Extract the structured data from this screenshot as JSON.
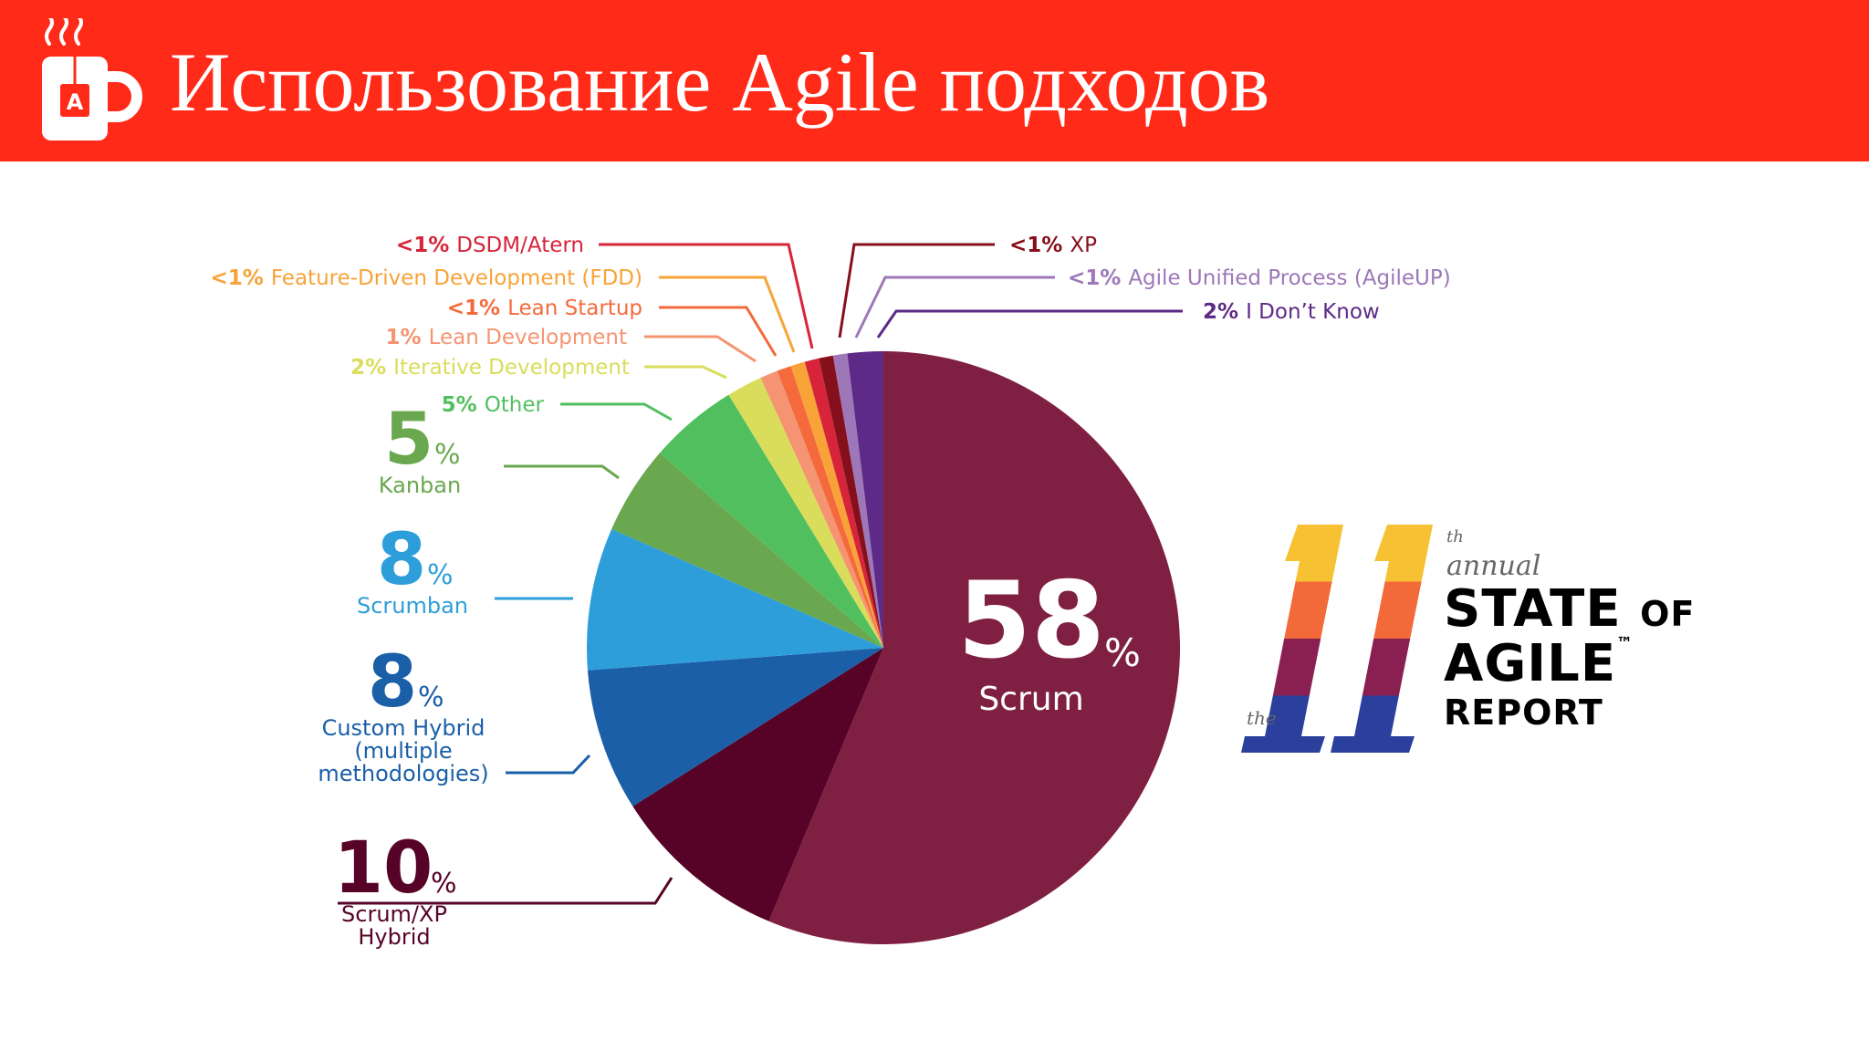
{
  "header": {
    "title": "Использование Agile подходов",
    "logo_icon": "coffee-mug-icon",
    "logo_letter": "A"
  },
  "colors": {
    "banner": "#ff2a18",
    "scrum": "#7f2043",
    "scrum_xp": "#560327",
    "custom_hybrid": "#1a5fa8",
    "scrumban": "#2d9ed9",
    "kanban": "#6aa84f",
    "other": "#52bf5f",
    "iterative": "#d9dd5b",
    "lean_dev": "#f59472",
    "lean_startup": "#f46a3c",
    "fdd": "#f7a338",
    "dsdm": "#d7243a",
    "xp": "#860f1c",
    "agileup": "#9d77b8",
    "dont_know": "#5d2a87"
  },
  "chart_data": {
    "type": "pie",
    "title": "",
    "slices": [
      {
        "key": "scrum",
        "name": "Scrum",
        "value": 58,
        "display": "58",
        "unit": "%",
        "style": "center"
      },
      {
        "key": "scrum_xp",
        "name_lines": [
          "Scrum/XP",
          "Hybrid"
        ],
        "value": 10,
        "display": "10",
        "unit": "%",
        "style": "big"
      },
      {
        "key": "custom_hybrid",
        "name_lines": [
          "Custom Hybrid",
          "(multiple",
          "methodologies)"
        ],
        "value": 8,
        "display": "8",
        "unit": "%",
        "style": "big"
      },
      {
        "key": "scrumban",
        "name_lines": [
          "Scrumban"
        ],
        "value": 8,
        "display": "8",
        "unit": "%",
        "style": "big"
      },
      {
        "key": "kanban",
        "name_lines": [
          "Kanban"
        ],
        "value": 5,
        "display": "5",
        "unit": "%",
        "style": "big"
      },
      {
        "key": "other",
        "name": "Other",
        "value": 5,
        "display": "5%",
        "style": "small"
      },
      {
        "key": "iterative",
        "name": "Iterative Development",
        "value": 2,
        "display": "2%",
        "style": "small"
      },
      {
        "key": "lean_dev",
        "name": "Lean Development",
        "value": 1,
        "display": "1%",
        "style": "small"
      },
      {
        "key": "lean_startup",
        "name": "Lean Startup",
        "value": 0.8,
        "display": "<1%",
        "style": "small"
      },
      {
        "key": "fdd",
        "name": "Feature-Driven Development (FDD)",
        "value": 0.8,
        "display": "<1%",
        "style": "small"
      },
      {
        "key": "dsdm",
        "name": "DSDM/Atern",
        "value": 0.8,
        "display": "<1%",
        "style": "small"
      },
      {
        "key": "xp",
        "name": "XP",
        "value": 0.8,
        "display": "<1%",
        "style": "small"
      },
      {
        "key": "agileup",
        "name": "Agile Unified Process (AgileUP)",
        "value": 0.8,
        "display": "<1%",
        "style": "small"
      },
      {
        "key": "dont_know",
        "name": "I Don’t Know",
        "value": 2,
        "display": "2%",
        "style": "small"
      }
    ]
  },
  "report_badge": {
    "number": "11",
    "superscript": "th",
    "prefix": "the",
    "annual": "annual",
    "line1": "STATE",
    "line1_small": "OF",
    "line2": "AGILE",
    "trademark": "™",
    "line3": "REPORT",
    "stripe_colors": [
      "#f6c233",
      "#f26a3a",
      "#8a1f52",
      "#2b3f9c"
    ]
  }
}
